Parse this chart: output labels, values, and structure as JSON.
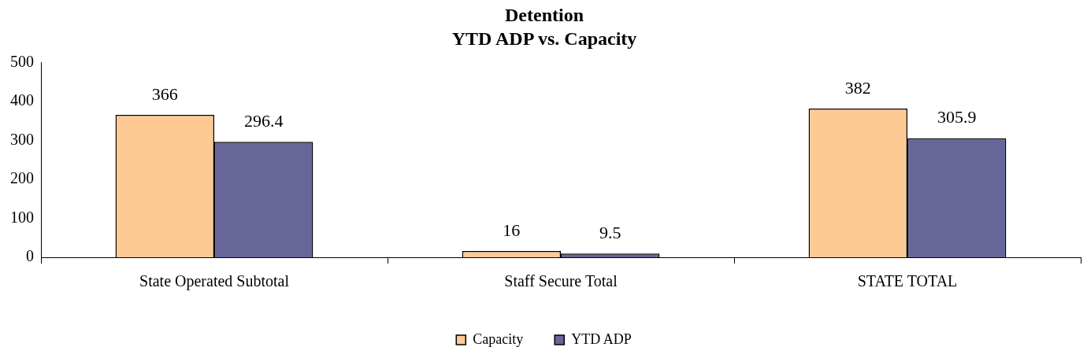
{
  "chart_data": {
    "type": "bar",
    "title": "Detention",
    "subtitle": "YTD ADP vs. Capacity",
    "categories": [
      "State Operated Subtotal",
      "Staff Secure Total",
      "STATE TOTAL"
    ],
    "series": [
      {
        "name": "Capacity",
        "color": "#fdca93",
        "values": [
          366,
          16,
          382
        ]
      },
      {
        "name": "YTD ADP",
        "color": "#666699",
        "values": [
          296.4,
          9.5,
          305.9
        ]
      }
    ],
    "ylim": [
      0,
      500
    ],
    "yticks": [
      0,
      100,
      200,
      300,
      400,
      500
    ],
    "grid": false,
    "legend": "bottom",
    "data_labels": true
  }
}
